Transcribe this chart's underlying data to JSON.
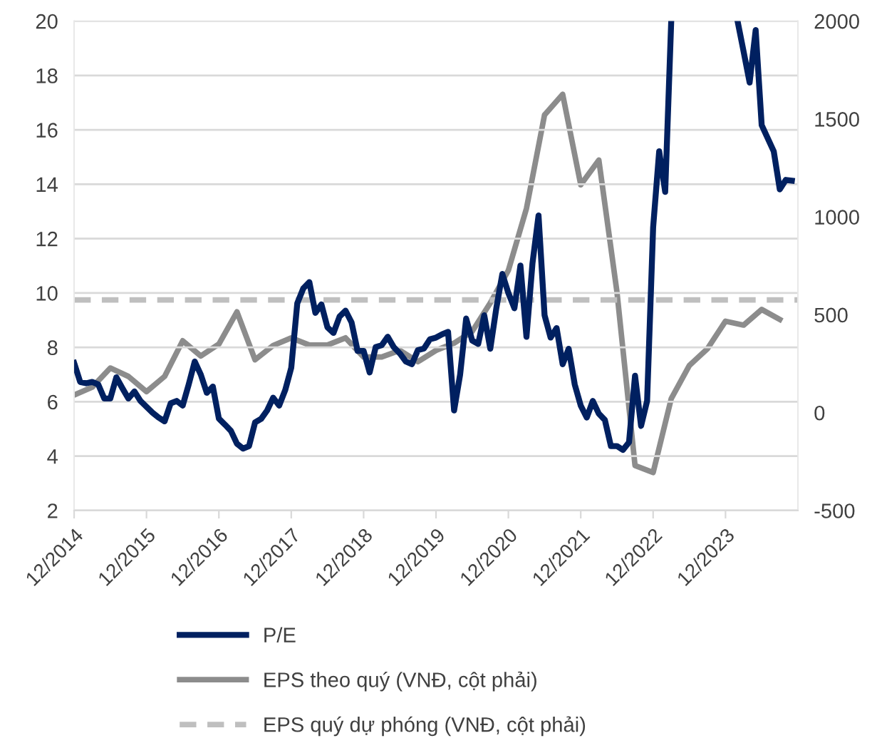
{
  "chart_data": {
    "type": "line",
    "xlim": [
      "2014-12",
      "2024-12"
    ],
    "xticks": [
      {
        "value": "2014-12",
        "label": "12/2014"
      },
      {
        "value": "2015-12",
        "label": "12/2015"
      },
      {
        "value": "2016-12",
        "label": "12/2016"
      },
      {
        "value": "2017-12",
        "label": "12/2017"
      },
      {
        "value": "2018-12",
        "label": "12/2018"
      },
      {
        "value": "2019-12",
        "label": "12/2019"
      },
      {
        "value": "2020-12",
        "label": "12/2020"
      },
      {
        "value": "2021-12",
        "label": "12/2021"
      },
      {
        "value": "2022-12",
        "label": "12/2022"
      },
      {
        "value": "2023-12",
        "label": "12/2023"
      }
    ],
    "ylim": [
      2,
      20
    ],
    "yticks": [
      2,
      4,
      6,
      8,
      10,
      12,
      14,
      16,
      18,
      20
    ],
    "y2lim": [
      -500,
      2000
    ],
    "y2ticks": [
      -500,
      0,
      500,
      1000,
      1500,
      2000
    ],
    "grid": "y",
    "legend": "bottom",
    "series": [
      {
        "name": "P/E",
        "color": "#002060",
        "line_style": "solid",
        "x": [
          "2014-12",
          "2015-01",
          "2015-02",
          "2015-03",
          "2015-04",
          "2015-05",
          "2015-06",
          "2015-07",
          "2015-08",
          "2015-09",
          "2015-10",
          "2015-11",
          "2016-01",
          "2016-02",
          "2016-03",
          "2016-04",
          "2016-05",
          "2016-06",
          "2016-07",
          "2016-08",
          "2016-09",
          "2016-10",
          "2016-11",
          "2016-12",
          "2017-01",
          "2017-02",
          "2017-03",
          "2017-04",
          "2017-05",
          "2017-06",
          "2017-07",
          "2017-08",
          "2017-09",
          "2017-10",
          "2017-11",
          "2017-12",
          "2018-01",
          "2018-02",
          "2018-03",
          "2018-04",
          "2018-05",
          "2018-06",
          "2018-07",
          "2018-08",
          "2018-09",
          "2018-10",
          "2018-11",
          "2018-12",
          "2019-01",
          "2019-02",
          "2019-03",
          "2019-04",
          "2019-05",
          "2019-06",
          "2019-07",
          "2019-08",
          "2019-09",
          "2019-10",
          "2019-11",
          "2019-12",
          "2020-01",
          "2020-02",
          "2020-03",
          "2020-04",
          "2020-05",
          "2020-06",
          "2020-07",
          "2020-08",
          "2020-09",
          "2020-10",
          "2020-11",
          "2020-12",
          "2021-01",
          "2021-02",
          "2021-03",
          "2021-04",
          "2021-05",
          "2021-06",
          "2021-07",
          "2021-08",
          "2021-09",
          "2021-10",
          "2021-11",
          "2021-12",
          "2022-01",
          "2022-02",
          "2022-03",
          "2022-04",
          "2022-05",
          "2022-06",
          "2022-07",
          "2022-08",
          "2022-09",
          "2022-10",
          "2022-11",
          "2022-12",
          "2023-01",
          "2023-02",
          "2023-03",
          "2023-09",
          "2024-02",
          "2024-03",
          "2024-04",
          "2024-05",
          "2024-06",
          "2024-08",
          "2024-09",
          "2024-10",
          "2024-11"
        ],
        "values": [
          7.43,
          6.73,
          6.68,
          6.73,
          6.64,
          6.12,
          6.12,
          6.9,
          6.5,
          6.12,
          6.38,
          6.03,
          5.6,
          5.42,
          5.28,
          5.94,
          6.03,
          5.86,
          6.64,
          7.48,
          7.0,
          6.33,
          6.56,
          5.38,
          5.16,
          4.93,
          4.46,
          4.28,
          4.37,
          5.24,
          5.37,
          5.68,
          6.15,
          5.86,
          6.43,
          7.25,
          9.62,
          10.17,
          10.4,
          9.27,
          9.58,
          8.74,
          8.53,
          9.13,
          9.35,
          8.92,
          7.87,
          7.87,
          7.08,
          8.01,
          8.08,
          8.39,
          8.01,
          7.78,
          7.48,
          7.38,
          7.9,
          7.96,
          8.3,
          8.36,
          8.48,
          8.57,
          5.68,
          7.0,
          9.06,
          8.25,
          8.13,
          9.18,
          7.95,
          9.44,
          10.7,
          10.0,
          9.44,
          11.01,
          8.39,
          11.1,
          12.85,
          9.18,
          8.36,
          8.71,
          7.38,
          7.95,
          6.64,
          5.86,
          5.42,
          6.03,
          5.56,
          5.33,
          4.37,
          4.37,
          4.23,
          4.51,
          6.96,
          5.11,
          6.03,
          12.41,
          15.21,
          13.72,
          20,
          null,
          20,
          18.88,
          17.74,
          19.67,
          16.17,
          15.21,
          13.81,
          14.16,
          14.13
        ]
      },
      {
        "name": "EPS theo quý (VNĐ, cột phải)",
        "color": "#8c8c8c",
        "line_style": "solid",
        "axis": "y2",
        "x": [
          "2014-12",
          "2015-03",
          "2015-06",
          "2015-09",
          "2015-12",
          "2016-03",
          "2016-06",
          "2016-09",
          "2016-12",
          "2017-03",
          "2017-06",
          "2017-09",
          "2017-12",
          "2018-03",
          "2018-06",
          "2018-09",
          "2018-12",
          "2019-03",
          "2019-06",
          "2019-09",
          "2019-12",
          "2020-03",
          "2020-06",
          "2020-09",
          "2020-12",
          "2021-03",
          "2021-06",
          "2021-09",
          "2021-12",
          "2022-03",
          "2022-06",
          "2022-09",
          "2022-12",
          "2023-03",
          "2023-06",
          "2023-09",
          "2023-12",
          "2024-03",
          "2024-06",
          "2024-09"
        ],
        "values": [
          90,
          130,
          228,
          185,
          107,
          185,
          367,
          289,
          350,
          515,
          270,
          343,
          382,
          345,
          345,
          382,
          284,
          284,
          318,
          260,
          318,
          355,
          415,
          560,
          727,
          1043,
          1521,
          1626,
          1164,
          1290,
          617,
          -270,
          -306,
          71,
          241,
          326,
          467,
          447,
          527,
          476
        ]
      },
      {
        "name": "EPS quý dự phóng (VNĐ, cột phải)",
        "color": "#bfbfbf",
        "line_style": "dashed",
        "axis": "y2",
        "x": [
          "2014-12",
          "2024-12"
        ],
        "values": [
          576,
          576
        ]
      }
    ]
  }
}
